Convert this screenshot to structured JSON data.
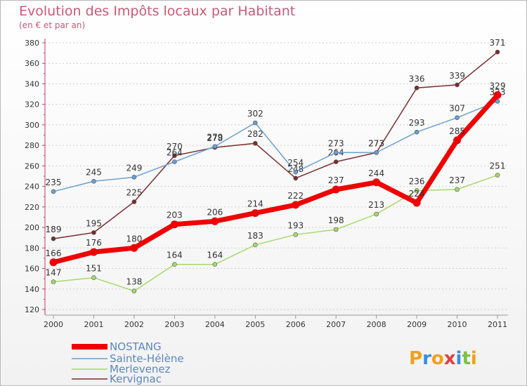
{
  "title": "Evolution des Impôts locaux par Habitant",
  "subtitle": "(en € et par an)",
  "logo": {
    "text": "Proxiti"
  },
  "chart_data": {
    "type": "line",
    "title": "Evolution des Impôts locaux par Habitant",
    "subtitle": "(en € et par an)",
    "xlabel": "",
    "ylabel": "",
    "x": [
      "2000",
      "2001",
      "2002",
      "2003",
      "2004",
      "2005",
      "2006",
      "2007",
      "2008",
      "2009",
      "2010",
      "2011"
    ],
    "ylim": [
      120,
      380
    ],
    "yticks": [
      "120",
      "140",
      "160",
      "180",
      "200",
      "220",
      "240",
      "260",
      "280",
      "300",
      "320",
      "340",
      "360",
      "380"
    ],
    "grid": "horizontal dashed",
    "legend_position": "bottom-left",
    "series": [
      {
        "name": "NOSTANG",
        "color": "#ee0000",
        "values": [
          166,
          176,
          180,
          203,
          206,
          214,
          222,
          237,
          244,
          224,
          285,
          329
        ],
        "labels": [
          "166",
          "176",
          "180",
          "203",
          "206",
          "214",
          "222",
          "237",
          "244",
          "224",
          "285",
          "329"
        ]
      },
      {
        "name": "Sainte-Hélène",
        "color": "#6b9fd1",
        "values": [
          235,
          245,
          249,
          264,
          279,
          302,
          254,
          273,
          273,
          293,
          307,
          323
        ],
        "labels": [
          "235",
          "245",
          "249",
          "264",
          "279",
          "302",
          "254",
          "273",
          "273",
          "293",
          "307",
          "323"
        ]
      },
      {
        "name": "Merlevenez",
        "color": "#a6d96a",
        "values": [
          147,
          151,
          138,
          164,
          164,
          183,
          193,
          198,
          213,
          236,
          237,
          251
        ],
        "labels": [
          "147",
          "151",
          "138",
          "164",
          "164",
          "183",
          "193",
          "198",
          "213",
          "236",
          "237",
          "251"
        ]
      },
      {
        "name": "Kervignac",
        "color": "#7b2c2c",
        "values": [
          189,
          195,
          225,
          270,
          278,
          282,
          248,
          264,
          273,
          336,
          339,
          371
        ],
        "labels": [
          "189",
          "195",
          "225",
          "270",
          "278",
          "282",
          "248",
          "264",
          "273",
          "336",
          "339",
          "371"
        ]
      }
    ]
  }
}
